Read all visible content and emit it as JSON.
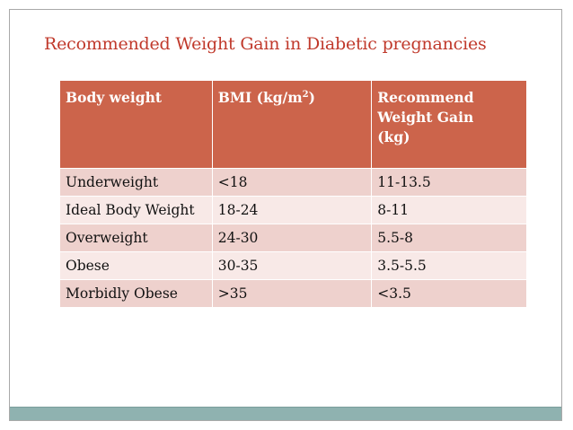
{
  "slide": {
    "title": "Recommended Weight Gain in Diabetic pregnancies"
  },
  "table": {
    "headers": {
      "col1": "Body weight",
      "col2_prefix": "BMI (kg/m",
      "col2_sup": "2",
      "col2_suffix": ")",
      "col3_line1": "Recommend",
      "col3_line2": "Weight Gain",
      "col3_line3": "(kg)"
    },
    "rows": [
      {
        "body_weight": "Underweight",
        "bmi": "<18",
        "gain": "11-13.5"
      },
      {
        "body_weight": "Ideal Body Weight",
        "bmi": "18-24",
        "gain": "8-11"
      },
      {
        "body_weight": "Overweight",
        "bmi": "24-30",
        "gain": "5.5-8"
      },
      {
        "body_weight": "Obese",
        "bmi": "30-35",
        "gain": "3.5-5.5"
      },
      {
        "body_weight": "Morbidly Obese",
        "bmi": ">35",
        "gain": "<3.5"
      }
    ]
  },
  "colors": {
    "title": "#c0392b",
    "header_bg": "#cc644b",
    "row_odd": "#eed1cd",
    "row_even": "#f8e9e7",
    "footer_bar": "#8fb2b0"
  }
}
